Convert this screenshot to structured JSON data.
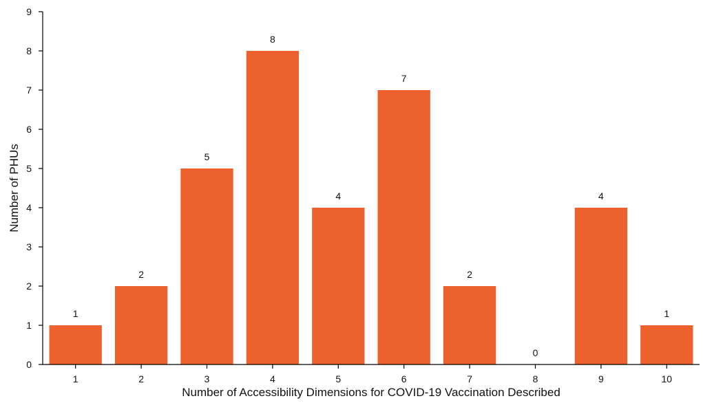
{
  "chart_data": {
    "type": "bar",
    "title": "",
    "xlabel": "Number of Accessibility Dimensions for COVID-19 Vaccination Described",
    "ylabel": "Number of PHUs",
    "categories": [
      "1",
      "2",
      "3",
      "4",
      "5",
      "6",
      "7",
      "8",
      "9",
      "10"
    ],
    "series": [
      {
        "values": [
          1,
          2,
          5,
          8,
          4,
          7,
          2,
          0,
          4,
          1
        ]
      }
    ],
    "data_labels": [
      "1",
      "2",
      "5",
      "8",
      "4",
      "7",
      "2",
      "0",
      "4",
      "1"
    ],
    "ylim": [
      0,
      9
    ],
    "yticks": [
      0,
      1,
      2,
      3,
      4,
      5,
      6,
      7,
      8,
      9
    ],
    "grid": false,
    "legend": "none",
    "colors": {
      "bar": "#EC612E",
      "axis": "#000000",
      "text": "#111111"
    }
  }
}
